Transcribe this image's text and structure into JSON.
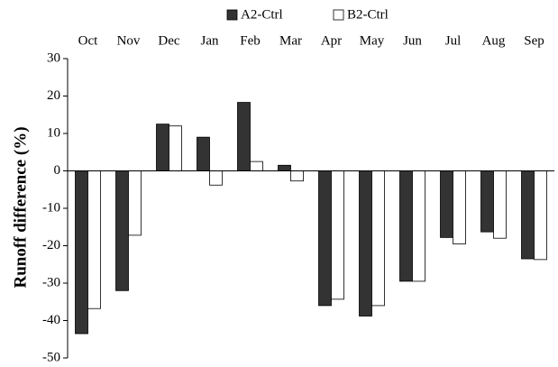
{
  "chart_data": {
    "type": "bar",
    "y_label": "Runoff difference (%)",
    "categories": [
      "Oct",
      "Nov",
      "Dec",
      "Jan",
      "Feb",
      "Mar",
      "Apr",
      "May",
      "Jun",
      "Jul",
      "Aug",
      "Sep"
    ],
    "series": [
      {
        "name": "A2-Ctrl",
        "color": "#333333",
        "values": [
          -43.5,
          -32,
          12.5,
          9,
          18.3,
          1.5,
          -36,
          -38.8,
          -29.5,
          -17.8,
          -16.3,
          -23.5
        ]
      },
      {
        "name": "B2-Ctrl",
        "color": "#ffffff",
        "values": [
          -36.8,
          -17.2,
          12,
          -3.8,
          2.5,
          -2.7,
          -34.3,
          -36,
          -29.5,
          -19.5,
          -18,
          -23.7
        ]
      }
    ],
    "ylim": [
      -50,
      30
    ],
    "yticks": [
      -50,
      -40,
      -30,
      -20,
      -10,
      0,
      10,
      20,
      30
    ],
    "legend": "top",
    "grid": false
  }
}
